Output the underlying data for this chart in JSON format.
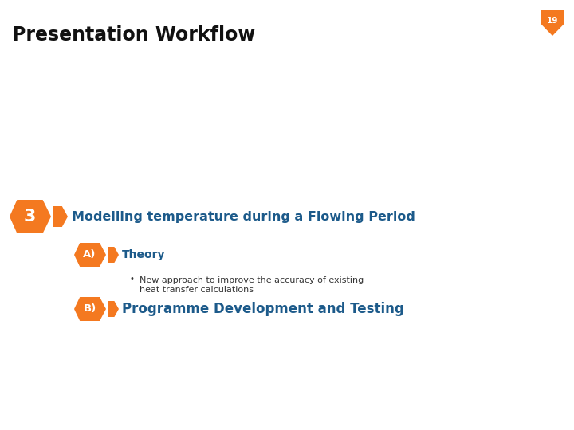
{
  "title": "Presentation Workflow",
  "title_fontsize": 17,
  "title_fontweight": "bold",
  "title_color": "#111111",
  "background_color": "#ffffff",
  "page_number": "19",
  "page_number_bg": "#f47920",
  "page_number_color": "#ffffff",
  "main_item_number": "3",
  "main_item_text": "Modelling temperature during a Flowing Period",
  "main_item_color": "#f47920",
  "main_item_text_color": "#1c5a8a",
  "sub_item_A_label": "A)",
  "sub_item_A_text": "Theory",
  "sub_item_A_color": "#f47920",
  "sub_item_A_text_color": "#1c5a8a",
  "bullet_line1": "New approach to improve the accuracy of existing",
  "bullet_line2": "heat transfer calculations",
  "bullet_color": "#333333",
  "sub_item_B_label": "B)",
  "sub_item_B_text": "Programme Development and Testing",
  "sub_item_B_color": "#f47920",
  "sub_item_B_text_color": "#1c5a8a",
  "main_item_fontsize": 11.5,
  "sub_item_fontsize": 10,
  "sub_B_fontsize": 12,
  "bullet_fontsize": 8
}
